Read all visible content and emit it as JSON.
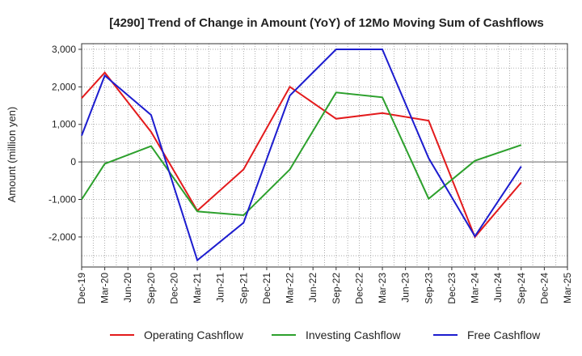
{
  "chart_data": {
    "type": "line",
    "title": "[4290]  Trend of Change in Amount (YoY) of 12Mo Moving Sum of Cashflows",
    "xlabel": "",
    "ylabel": "Amount (million yen)",
    "ylim": [
      -2800,
      3150
    ],
    "yticks": [
      3000,
      2000,
      1000,
      0,
      -1000,
      -2000
    ],
    "ytick_labels": [
      "3,000",
      "2,000",
      "1,000",
      "0",
      "-1,000",
      "-2,000"
    ],
    "categories": [
      "Dec-19",
      "Mar-20",
      "Jun-20",
      "Sep-20",
      "Dec-20",
      "Mar-21",
      "Jun-21",
      "Sep-21",
      "Dec-21",
      "Mar-22",
      "Jun-22",
      "Sep-22",
      "Dec-22",
      "Mar-23",
      "Jun-23",
      "Sep-23",
      "Dec-23",
      "Mar-24",
      "Jun-24",
      "Sep-24",
      "Dec-24",
      "Mar-25"
    ],
    "series": [
      {
        "name": "Operating Cashflow",
        "color": "#e31a1c",
        "values": [
          1700,
          2380,
          null,
          800,
          null,
          -1300,
          null,
          -200,
          null,
          2000,
          null,
          1150,
          null,
          1300,
          null,
          1100,
          null,
          -2000,
          null,
          -550,
          null,
          null
        ]
      },
      {
        "name": "Investing Cashflow",
        "color": "#2ca02c",
        "values": [
          -1000,
          -50,
          null,
          420,
          null,
          -1320,
          null,
          -1420,
          null,
          -200,
          null,
          1850,
          null,
          1720,
          null,
          -980,
          null,
          30,
          null,
          450,
          null,
          null
        ]
      },
      {
        "name": "Free Cashflow",
        "color": "#1c1ccf",
        "values": [
          700,
          2300,
          null,
          1250,
          null,
          -2620,
          null,
          -1620,
          null,
          1770,
          null,
          3000,
          null,
          3000,
          null,
          100,
          null,
          -1980,
          null,
          -120,
          null,
          null
        ]
      }
    ],
    "legend": "bottom"
  }
}
